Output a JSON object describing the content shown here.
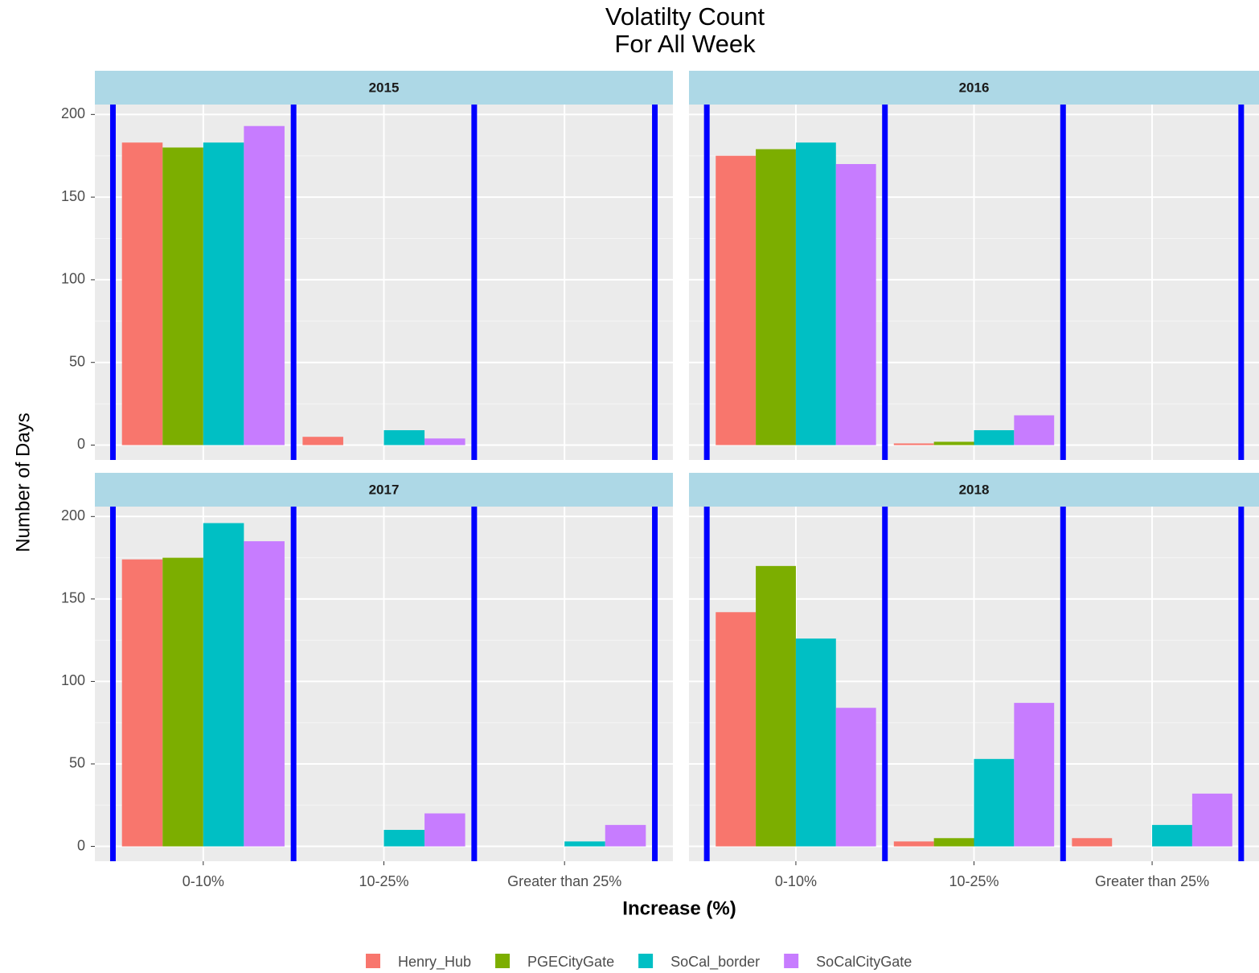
{
  "chart_data": {
    "type": "bar",
    "title": "Volatilty Count",
    "subtitle": "For All Week",
    "x_label": "Increase (%)",
    "y_label": "Number of Days",
    "categories": [
      "0-10%",
      "10-25%",
      "Greater than 25%"
    ],
    "series": [
      {
        "name": "Henry_Hub",
        "color": "#f8766d"
      },
      {
        "name": "PGECityGate",
        "color": "#7cae00"
      },
      {
        "name": "SoCal_border",
        "color": "#00bfc4"
      },
      {
        "name": "SoCalCityGate",
        "color": "#c77cff"
      }
    ],
    "panels": [
      {
        "title": "2015",
        "values": [
          [
            183,
            5,
            null
          ],
          [
            180,
            null,
            null
          ],
          [
            183,
            9,
            null
          ],
          [
            193,
            4,
            null
          ]
        ]
      },
      {
        "title": "2016",
        "values": [
          [
            175,
            1,
            null
          ],
          [
            179,
            2,
            null
          ],
          [
            183,
            9,
            null
          ],
          [
            170,
            18,
            null
          ]
        ]
      },
      {
        "title": "2017",
        "values": [
          [
            174,
            null,
            null
          ],
          [
            175,
            null,
            null
          ],
          [
            196,
            10,
            3
          ],
          [
            185,
            20,
            13
          ]
        ]
      },
      {
        "title": "2018",
        "values": [
          [
            142,
            3,
            5
          ],
          [
            170,
            5,
            null
          ],
          [
            126,
            53,
            13
          ],
          [
            84,
            87,
            32
          ]
        ]
      }
    ],
    "ylim": [
      -9,
      206
    ],
    "yticks": [
      0,
      50,
      100,
      150,
      200
    ],
    "grid": true,
    "legend": "bottom"
  }
}
